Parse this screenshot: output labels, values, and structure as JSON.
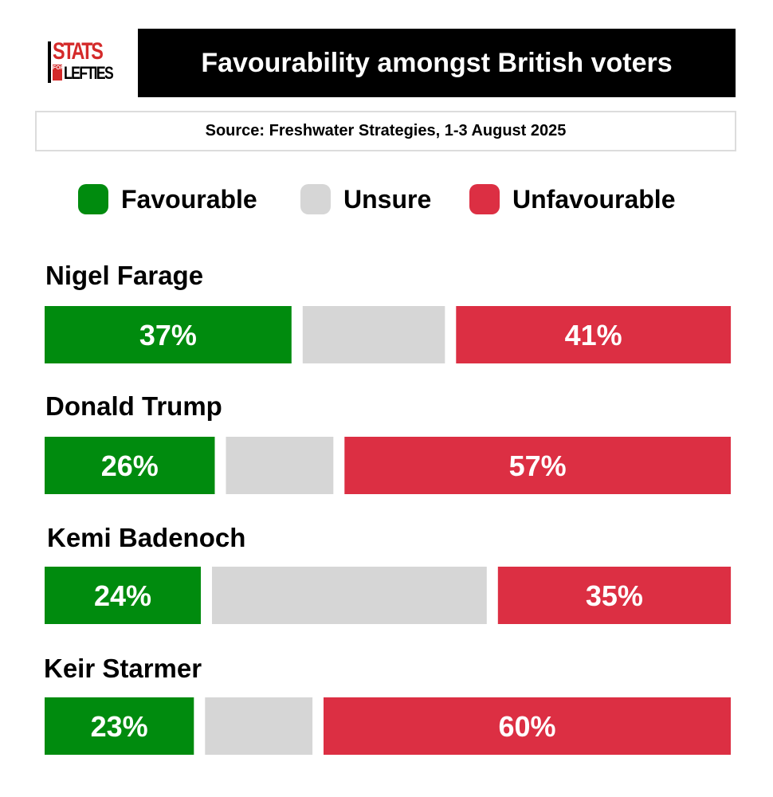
{
  "logo": {
    "line1": "STATS",
    "for": "FOR",
    "line2": "LEFTIES"
  },
  "header": {
    "title": "Favourability amongst British voters",
    "source": "Source: Freshwater Strategies, 1-3 August 2025"
  },
  "colors": {
    "favourable": "#008b0e",
    "unsure": "#d6d6d6",
    "unfavourable": "#dc2f43"
  },
  "chart_data": {
    "type": "bar",
    "orientation": "horizontal-stacked",
    "title": "Favourability amongst British voters",
    "legend": [
      "Favourable",
      "Unsure",
      "Unfavourable"
    ],
    "legend_position": "top",
    "categories": [
      "Nigel Farage",
      "Donald Trump",
      "Kemi Badenoch",
      "Keir Starmer"
    ],
    "series": [
      {
        "name": "Favourable",
        "values": [
          37,
          26,
          24,
          23
        ],
        "labels": [
          "37%",
          "26%",
          "24%",
          "23%"
        ]
      },
      {
        "name": "Unsure",
        "values": [
          22,
          17,
          41,
          17
        ],
        "labels": [
          "",
          "",
          "",
          ""
        ]
      },
      {
        "name": "Unfavourable",
        "values": [
          41,
          57,
          35,
          60
        ],
        "labels": [
          "41%",
          "57%",
          "35%",
          "60%"
        ]
      }
    ],
    "xlim": [
      0,
      100
    ]
  }
}
